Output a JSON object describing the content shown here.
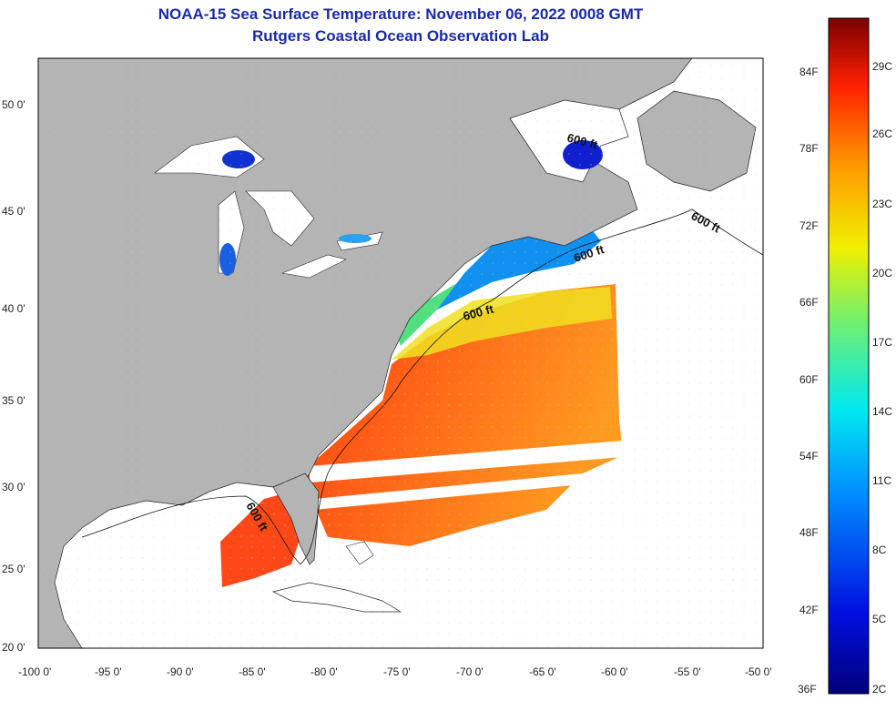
{
  "title": "NOAA-15 Sea Surface Temperature:  November 06, 2022 0008 GMT",
  "subtitle": "Rutgers Coastal Ocean Observation Lab",
  "lat_ticks": [
    "50 0'",
    "45 0'",
    "40 0'",
    "35 0'",
    "30 0'",
    "25 0'",
    "20 0'"
  ],
  "lon_ticks": [
    "-100 0'",
    "-95 0'",
    "-90 0'",
    "-85 0'",
    "-80 0'",
    "-75 0'",
    "-70 0'",
    "-65 0'",
    "-60 0'",
    "-55 0'",
    "-50 0'"
  ],
  "contour_label": "600 ft",
  "colorbar": {
    "fahrenheit": [
      "84F",
      "78F",
      "72F",
      "66F",
      "60F",
      "54F",
      "48F",
      "42F",
      "36F"
    ],
    "celsius": [
      "29C",
      "26C",
      "23C",
      "20C",
      "17C",
      "14C",
      "11C",
      "8C",
      "5C",
      "2C"
    ]
  },
  "colors": {
    "land": "#b4b4b4",
    "ocean_nodata": "#ffffff",
    "title": "#1a2aa8"
  }
}
